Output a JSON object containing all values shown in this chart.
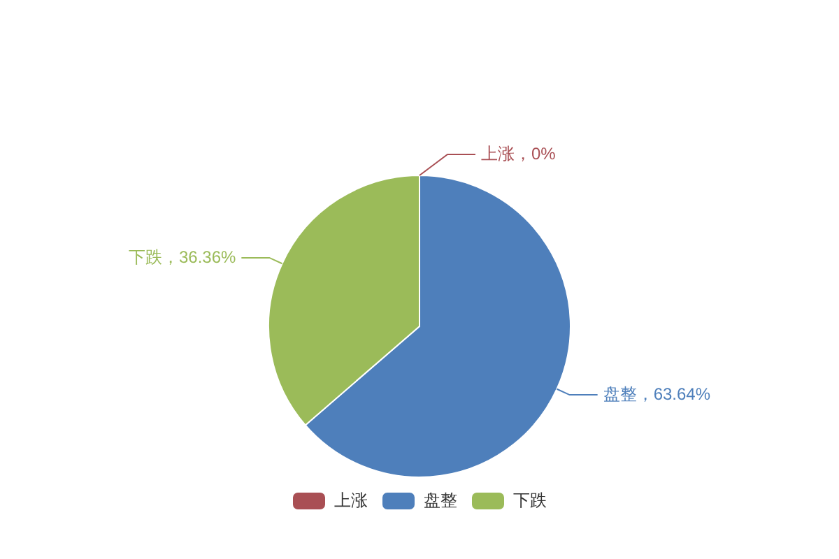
{
  "chart_data": {
    "type": "pie",
    "categories": [
      "上涨",
      "盘整",
      "下跌"
    ],
    "values": [
      0,
      63.64,
      36.36
    ],
    "colors": [
      "#a94f54",
      "#4e7fbb",
      "#9bbb59"
    ],
    "value_labels": [
      "上涨，0%",
      "盘整，63.64%",
      "下跌，36.36%"
    ],
    "legend": "bottom"
  }
}
